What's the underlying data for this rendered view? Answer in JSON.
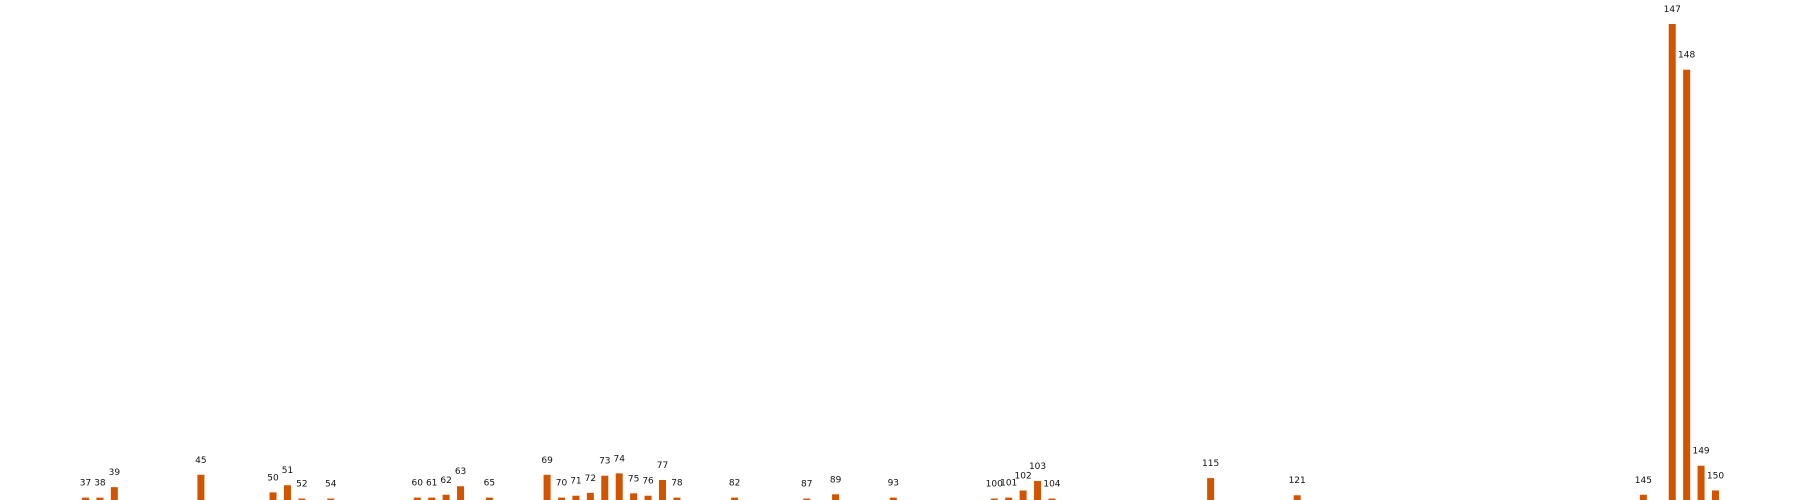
{
  "chart_data": {
    "type": "bar",
    "title": "",
    "xlabel": "",
    "ylabel": "",
    "bar_color": "#d35400",
    "grid": false,
    "axes_visible": false,
    "x_range": [
      28,
      156
    ],
    "ylim": [
      0,
      100
    ],
    "points": [
      {
        "x": 37,
        "label": "37",
        "value": 0.5
      },
      {
        "x": 38,
        "label": "38",
        "value": 0.5
      },
      {
        "x": 39,
        "label": "39",
        "value": 2.7
      },
      {
        "x": 45,
        "label": "45",
        "value": 5.3
      },
      {
        "x": 50,
        "label": "50",
        "value": 1.6
      },
      {
        "x": 51,
        "label": "51",
        "value": 3.1
      },
      {
        "x": 52,
        "label": "52",
        "value": 0.3
      },
      {
        "x": 54,
        "label": "54",
        "value": 0.3
      },
      {
        "x": 60,
        "label": "60",
        "value": 0.5
      },
      {
        "x": 61,
        "label": "61",
        "value": 0.5
      },
      {
        "x": 62,
        "label": "62",
        "value": 1.1
      },
      {
        "x": 63,
        "label": "63",
        "value": 2.9
      },
      {
        "x": 65,
        "label": "65",
        "value": 0.5
      },
      {
        "x": 69,
        "label": "69",
        "value": 5.3
      },
      {
        "x": 70,
        "label": "70",
        "value": 0.5
      },
      {
        "x": 71,
        "label": "71",
        "value": 0.9
      },
      {
        "x": 72,
        "label": "72",
        "value": 1.5
      },
      {
        "x": 73,
        "label": "73",
        "value": 5.1
      },
      {
        "x": 74,
        "label": "74",
        "value": 5.6
      },
      {
        "x": 75,
        "label": "75",
        "value": 1.4
      },
      {
        "x": 76,
        "label": "76",
        "value": 0.9
      },
      {
        "x": 77,
        "label": "77",
        "value": 4.2
      },
      {
        "x": 78,
        "label": "78",
        "value": 0.5
      },
      {
        "x": 82,
        "label": "82",
        "value": 0.5
      },
      {
        "x": 87,
        "label": "87",
        "value": 0.3
      },
      {
        "x": 89,
        "label": "89",
        "value": 1.2
      },
      {
        "x": 93,
        "label": "93",
        "value": 0.5
      },
      {
        "x": 100,
        "label": "100",
        "value": 0.3
      },
      {
        "x": 101,
        "label": "101",
        "value": 0.5
      },
      {
        "x": 102,
        "label": "102",
        "value": 2.0
      },
      {
        "x": 103,
        "label": "103",
        "value": 4.0
      },
      {
        "x": 104,
        "label": "104",
        "value": 0.3
      },
      {
        "x": 115,
        "label": "115",
        "value": 4.6
      },
      {
        "x": 121,
        "label": "121",
        "value": 1.0
      },
      {
        "x": 145,
        "label": "145",
        "value": 1.1
      },
      {
        "x": 147,
        "label": "147",
        "value": 100
      },
      {
        "x": 148,
        "label": "148",
        "value": 90.4
      },
      {
        "x": 149,
        "label": "149",
        "value": 7.2
      },
      {
        "x": 150,
        "label": "150",
        "value": 2.0
      }
    ]
  }
}
